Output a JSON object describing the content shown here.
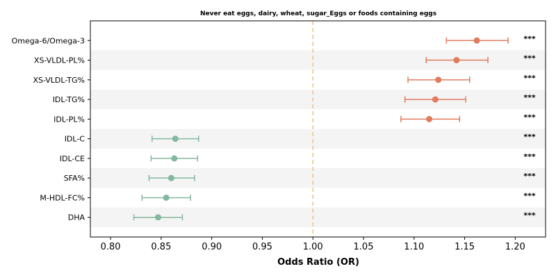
{
  "chart_data": {
    "type": "forest",
    "title": "Never eat eggs, dairy, wheat, sugar_Eggs or foods containing eggs",
    "xlabel": "Odds Ratio (OR)",
    "xlim": [
      0.78,
      1.23
    ],
    "xticks": [
      "0.80",
      "0.85",
      "0.90",
      "0.95",
      "1.00",
      "1.05",
      "1.10",
      "1.15",
      "1.20"
    ],
    "reference_line": 1.0,
    "reference_color": "#f2c185",
    "grid": false,
    "colors": {
      "increased": "#e07b5b",
      "decreased": "#84b89e",
      "stripe": "#f4f4f4"
    },
    "rows": [
      {
        "label": "Omega-6/Omega-3",
        "or": 1.162,
        "lower": 1.132,
        "upper": 1.193,
        "sig": "***"
      },
      {
        "label": "XS-VLDL-PL%",
        "or": 1.142,
        "lower": 1.112,
        "upper": 1.173,
        "sig": "***"
      },
      {
        "label": "XS-VLDL-TG%",
        "or": 1.124,
        "lower": 1.094,
        "upper": 1.155,
        "sig": "***"
      },
      {
        "label": "IDL-TG%",
        "or": 1.121,
        "lower": 1.091,
        "upper": 1.151,
        "sig": "***"
      },
      {
        "label": "IDL-PL%",
        "or": 1.115,
        "lower": 1.087,
        "upper": 1.145,
        "sig": "***"
      },
      {
        "label": "IDL-C",
        "or": 0.864,
        "lower": 0.841,
        "upper": 0.887,
        "sig": "***"
      },
      {
        "label": "IDL-CE",
        "or": 0.863,
        "lower": 0.84,
        "upper": 0.886,
        "sig": "***"
      },
      {
        "label": "SFA%",
        "or": 0.86,
        "lower": 0.838,
        "upper": 0.883,
        "sig": "***"
      },
      {
        "label": "M-HDL-FC%",
        "or": 0.855,
        "lower": 0.831,
        "upper": 0.879,
        "sig": "***"
      },
      {
        "label": "DHA",
        "or": 0.847,
        "lower": 0.823,
        "upper": 0.871,
        "sig": "***"
      }
    ]
  }
}
